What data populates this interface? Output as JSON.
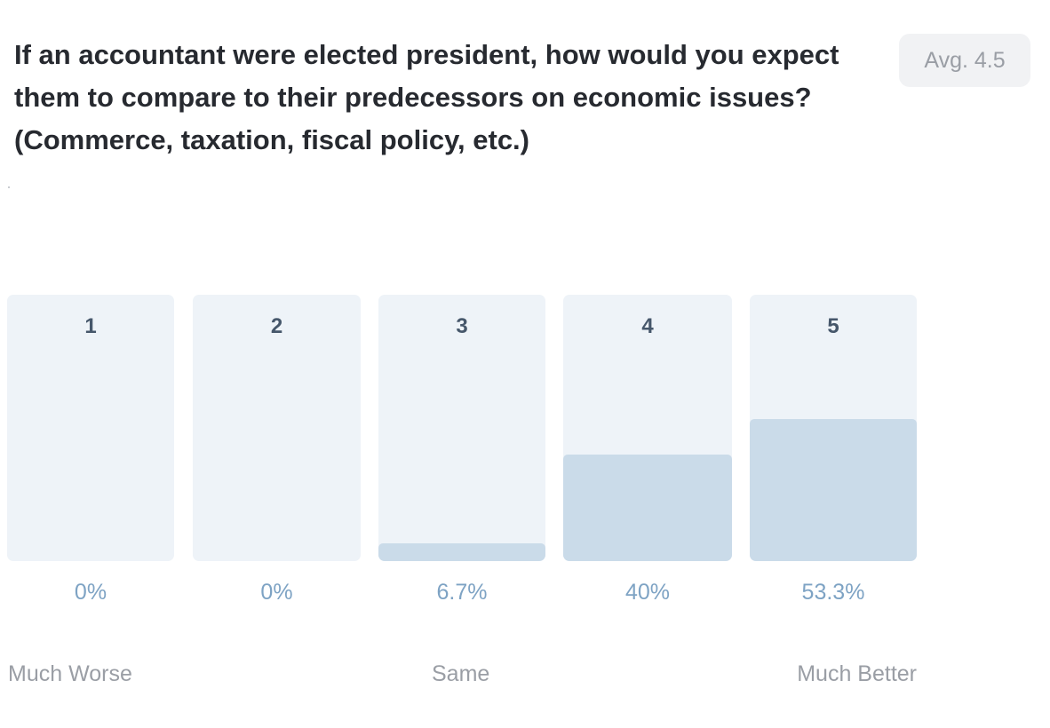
{
  "question": "If an accountant were elected president, how would you expect them to compare to their predecessors on economic issues? (Commerce, taxation, fiscal policy, etc.)",
  "average_label": "Avg. 4.5",
  "colors": {
    "column_bg": "#eef3f8",
    "fill": "#cadbe9",
    "percent_text": "#7ea3c4",
    "label_text": "#46576b"
  },
  "chart_data": {
    "type": "bar",
    "categories": [
      "1",
      "2",
      "3",
      "4",
      "5"
    ],
    "values": [
      0,
      0,
      6.7,
      40,
      53.3
    ],
    "value_labels": [
      "0%",
      "0%",
      "6.7%",
      "40%",
      "53.3%"
    ],
    "ylim": [
      0,
      100
    ],
    "scale_labels": {
      "low": "Much Worse",
      "mid": "Same",
      "high": "Much Better"
    }
  }
}
